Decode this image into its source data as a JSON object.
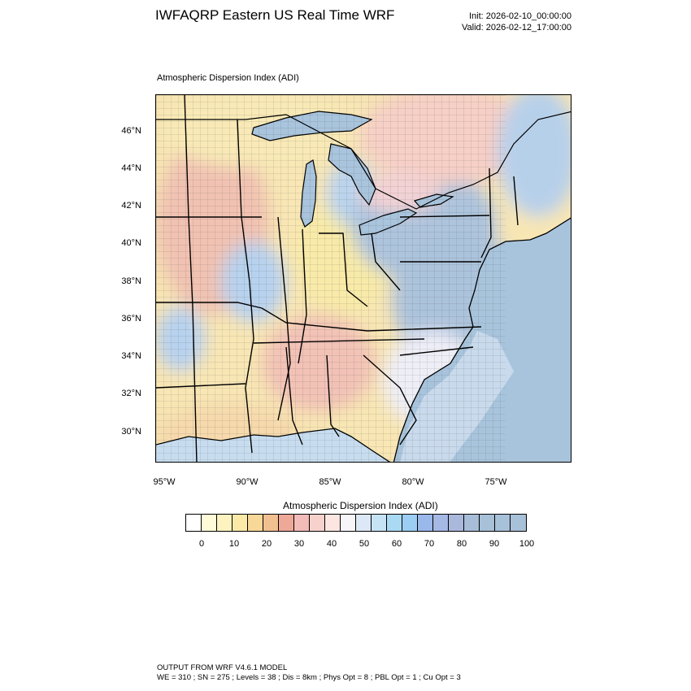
{
  "title": "IWFAQRP Eastern US Real Time WRF",
  "init": "Init: 2026-02-10_00:00:00",
  "valid": "Valid: 2026-02-12_17:00:00",
  "subtitle": "Atmospheric Dispersion Index   (ADI)",
  "lat_labels": [
    "46°N",
    "44°N",
    "42°N",
    "40°N",
    "38°N",
    "36°N",
    "34°N",
    "32°N",
    "30°N"
  ],
  "lon_labels": [
    "95°W",
    "90°W",
    "85°W",
    "80°W",
    "75°W"
  ],
  "colorbar": {
    "title": "Atmospheric Dispersion Index  (ADI)",
    "labels": [
      "0",
      "10",
      "20",
      "30",
      "40",
      "50",
      "60",
      "70",
      "80",
      "90",
      "100"
    ],
    "colors": [
      "#ffffff",
      "#fffbd8",
      "#fdf3c0",
      "#fbe9a8",
      "#f7d898",
      "#f2c090",
      "#eea898",
      "#f3bcb8",
      "#f7d2cc",
      "#fbe6e2",
      "#f8f5f8",
      "#dde8f6",
      "#c6e3f6",
      "#aadaf3",
      "#9ccdf2",
      "#9ab8ea",
      "#a6b8e4",
      "#aab8dc",
      "#a8bdd8",
      "#a8c0d8",
      "#a7c1d9",
      "#a7c1d9"
    ]
  },
  "footer": {
    "line1": "OUTPUT FROM WRF V4.6.1 MODEL",
    "line2": "WE = 310 ; SN = 275 ; Levels = 38 ; Dis = 8km ; Phys Opt = 8 ; PBL Opt = 1 ; Cu Opt = 3"
  },
  "colors": {
    "ocean": "#a8c4dc",
    "land_low": "#f9e3a8",
    "land_mid": "#f2c4b6",
    "land_high": "#a9c1dc"
  }
}
